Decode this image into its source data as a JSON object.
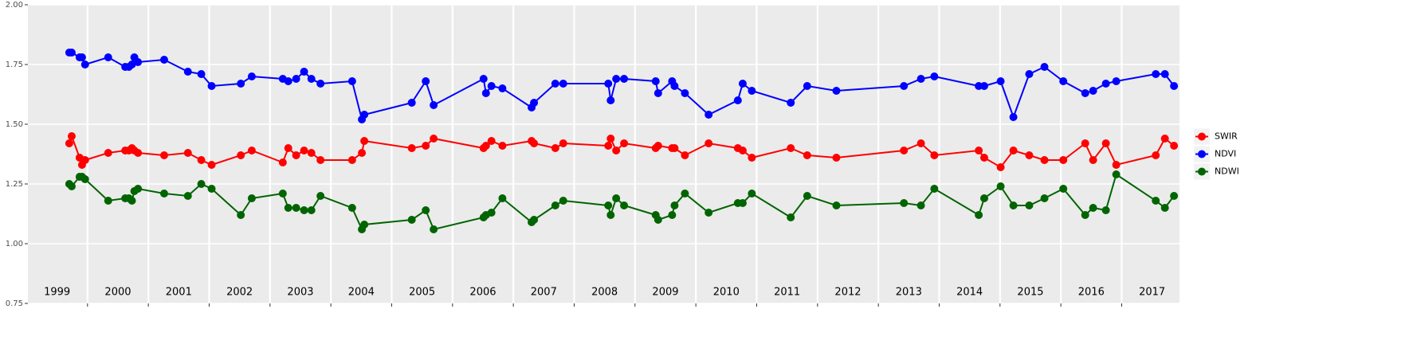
{
  "chart_data": {
    "type": "line",
    "x": [
      1999.7,
      1999.74,
      1999.87,
      1999.91,
      1999.96,
      2000.34,
      2000.62,
      2000.68,
      2000.73,
      2000.77,
      2000.83,
      2001.26,
      2001.65,
      2001.87,
      2002.04,
      2002.52,
      2002.7,
      2003.21,
      2003.3,
      2003.43,
      2003.56,
      2003.68,
      2003.83,
      2004.35,
      2004.51,
      2004.55,
      2005.33,
      2005.56,
      2005.69,
      2006.51,
      2006.55,
      2006.64,
      2006.82,
      2007.3,
      2007.34,
      2007.69,
      2007.82,
      2008.56,
      2008.6,
      2008.69,
      2008.82,
      2009.34,
      2009.38,
      2009.61,
      2009.65,
      2009.82,
      2010.21,
      2010.69,
      2010.77,
      2010.92,
      2011.56,
      2011.83,
      2012.31,
      2013.42,
      2013.7,
      2013.92,
      2014.65,
      2014.74,
      2015.01,
      2015.22,
      2015.48,
      2015.73,
      2016.04,
      2016.4,
      2016.53,
      2016.74,
      2016.91,
      2017.56,
      2017.71,
      2017.86
    ],
    "series": [
      {
        "name": "SWIR",
        "color": "#ff0000",
        "values": [
          1.42,
          1.45,
          1.36,
          1.33,
          1.35,
          1.38,
          1.39,
          1.39,
          1.4,
          1.39,
          1.38,
          1.37,
          1.38,
          1.35,
          1.33,
          1.37,
          1.39,
          1.34,
          1.4,
          1.37,
          1.39,
          1.38,
          1.35,
          1.35,
          1.38,
          1.43,
          1.4,
          1.41,
          1.44,
          1.4,
          1.41,
          1.43,
          1.41,
          1.43,
          1.42,
          1.4,
          1.42,
          1.41,
          1.44,
          1.39,
          1.42,
          1.4,
          1.41,
          1.4,
          1.4,
          1.37,
          1.42,
          1.4,
          1.39,
          1.36,
          1.4,
          1.37,
          1.36,
          1.39,
          1.42,
          1.37,
          1.39,
          1.36,
          1.32,
          1.39,
          1.37,
          1.35,
          1.35,
          1.42,
          1.35,
          1.42,
          1.33,
          1.37,
          1.44,
          1.41
        ]
      },
      {
        "name": "NDVI",
        "color": "#0000ff",
        "values": [
          1.8,
          1.8,
          1.78,
          1.78,
          1.75,
          1.78,
          1.74,
          1.74,
          1.75,
          1.78,
          1.76,
          1.77,
          1.72,
          1.71,
          1.66,
          1.67,
          1.7,
          1.69,
          1.68,
          1.69,
          1.72,
          1.69,
          1.67,
          1.68,
          1.52,
          1.54,
          1.59,
          1.68,
          1.58,
          1.69,
          1.63,
          1.66,
          1.65,
          1.57,
          1.59,
          1.67,
          1.67,
          1.67,
          1.6,
          1.69,
          1.69,
          1.68,
          1.63,
          1.68,
          1.66,
          1.63,
          1.54,
          1.6,
          1.67,
          1.64,
          1.59,
          1.66,
          1.64,
          1.66,
          1.69,
          1.7,
          1.66,
          1.66,
          1.68,
          1.53,
          1.71,
          1.74,
          1.68,
          1.63,
          1.64,
          1.67,
          1.68,
          1.71,
          1.71,
          1.66
        ]
      },
      {
        "name": "NDWI",
        "color": "#006400",
        "values": [
          1.25,
          1.24,
          1.28,
          1.28,
          1.27,
          1.18,
          1.19,
          1.19,
          1.18,
          1.22,
          1.23,
          1.21,
          1.2,
          1.25,
          1.23,
          1.12,
          1.19,
          1.21,
          1.15,
          1.15,
          1.14,
          1.14,
          1.2,
          1.15,
          1.06,
          1.08,
          1.1,
          1.14,
          1.06,
          1.11,
          1.12,
          1.13,
          1.19,
          1.09,
          1.1,
          1.16,
          1.18,
          1.16,
          1.12,
          1.19,
          1.16,
          1.12,
          1.1,
          1.12,
          1.16,
          1.21,
          1.13,
          1.17,
          1.17,
          1.21,
          1.11,
          1.2,
          1.16,
          1.17,
          1.16,
          1.23,
          1.12,
          1.19,
          1.24,
          1.16,
          1.16,
          1.19,
          1.23,
          1.12,
          1.15,
          1.14,
          1.29,
          1.18,
          1.15,
          1.2
        ]
      }
    ],
    "xlim": [
      1999.02,
      2017.95
    ],
    "xticks": [
      2000,
      2001,
      2002,
      2003,
      2004,
      2005,
      2006,
      2007,
      2008,
      2009,
      2010,
      2011,
      2012,
      2013,
      2014,
      2015,
      2016,
      2017
    ],
    "year_labels": [
      {
        "x": 1999.5,
        "label": "1999"
      },
      {
        "x": 2000.5,
        "label": "2000"
      },
      {
        "x": 2001.5,
        "label": "2001"
      },
      {
        "x": 2002.5,
        "label": "2002"
      },
      {
        "x": 2003.5,
        "label": "2003"
      },
      {
        "x": 2004.5,
        "label": "2004"
      },
      {
        "x": 2005.5,
        "label": "2005"
      },
      {
        "x": 2006.5,
        "label": "2006"
      },
      {
        "x": 2007.5,
        "label": "2007"
      },
      {
        "x": 2008.5,
        "label": "2008"
      },
      {
        "x": 2009.5,
        "label": "2009"
      },
      {
        "x": 2010.5,
        "label": "2010"
      },
      {
        "x": 2011.5,
        "label": "2011"
      },
      {
        "x": 2012.5,
        "label": "2012"
      },
      {
        "x": 2013.5,
        "label": "2013"
      },
      {
        "x": 2014.5,
        "label": "2014"
      },
      {
        "x": 2015.5,
        "label": "2015"
      },
      {
        "x": 2016.5,
        "label": "2016"
      },
      {
        "x": 2017.5,
        "label": "2017"
      }
    ],
    "ylim": [
      0.75,
      2.0
    ],
    "yticks": [
      0.75,
      {
        "value": 1,
        "label": "1.00"
      },
      1.25,
      {
        "value": 1.5,
        "label": "1.50"
      },
      1.75,
      {
        "value": 2,
        "label": "2.00"
      }
    ],
    "grid": true,
    "legend": "right"
  }
}
